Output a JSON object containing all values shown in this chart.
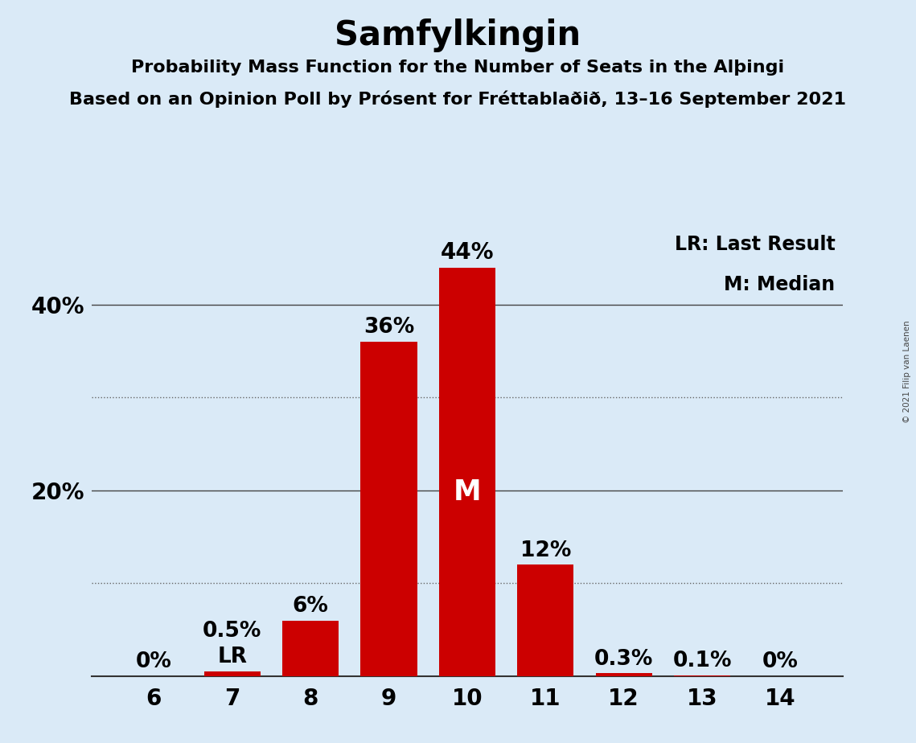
{
  "title": "Samfylkingin",
  "subtitle1": "Probability Mass Function for the Number of Seats in the Alþingi",
  "subtitle2": "Based on an Opinion Poll by Prósent for Fréttablaðið, 13–16 September 2021",
  "copyright": "© 2021 Filip van Laenen",
  "categories": [
    6,
    7,
    8,
    9,
    10,
    11,
    12,
    13,
    14
  ],
  "values": [
    0.0,
    0.5,
    6.0,
    36.0,
    44.0,
    12.0,
    0.3,
    0.1,
    0.0
  ],
  "labels": [
    "0%",
    "0.5%",
    "6%",
    "36%",
    "44%",
    "12%",
    "0.3%",
    "0.1%",
    "0%"
  ],
  "bar_color": "#cc0000",
  "background_color": "#daeaf7",
  "text_color": "#000000",
  "bar_label_color_outside": "#000000",
  "bar_label_color_inside": "#ffffff",
  "median_bar": 10,
  "median_label": "M",
  "lr_bar": 7,
  "lr_label": "LR",
  "legend_text1": "LR: Last Result",
  "legend_text2": "M: Median",
  "ylim": [
    0,
    48
  ],
  "ytick_positions": [
    10,
    20,
    30,
    40
  ],
  "ytick_labels_map": {
    "10": "",
    "20": "20%",
    "30": "",
    "40": "40%"
  },
  "solid_gridlines": [
    20,
    40
  ],
  "dotted_gridlines": [
    10,
    30
  ],
  "title_fontsize": 30,
  "subtitle_fontsize": 16,
  "axis_label_fontsize": 20,
  "bar_label_fontsize": 19,
  "legend_fontsize": 17
}
